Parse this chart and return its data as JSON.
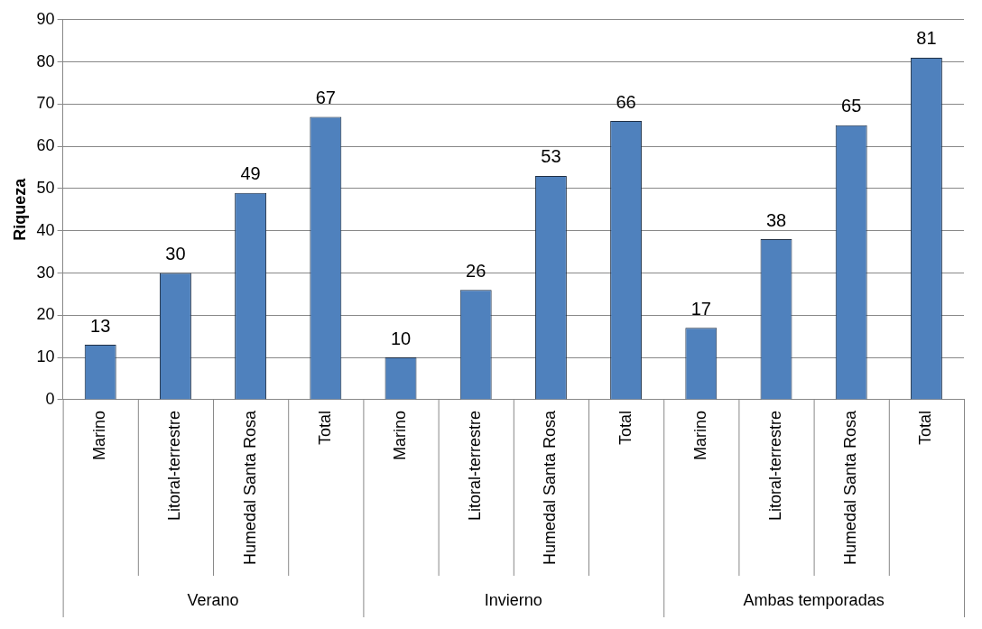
{
  "chart_data": {
    "type": "bar",
    "ylabel": "Riqueza",
    "categories": [
      "Marino",
      "Litoral-terrestre",
      "Humedal Santa Rosa",
      "Total",
      "Marino",
      "Litoral-terrestre",
      "Humedal Santa Rosa",
      "Total",
      "Marino",
      "Litoral-terrestre",
      "Humedal Santa Rosa",
      "Total"
    ],
    "values": [
      13,
      30,
      49,
      67,
      10,
      26,
      53,
      66,
      17,
      38,
      65,
      81
    ],
    "color": "#4f81bd",
    "ylim": [
      0,
      90
    ],
    "yticks": [
      0,
      10,
      20,
      30,
      40,
      50,
      60,
      70,
      80,
      90
    ],
    "grid": "y",
    "legend": false,
    "data_labels": true,
    "annotations": [
      "Verano",
      "Invierno",
      "Ambas temporadas"
    ]
  }
}
